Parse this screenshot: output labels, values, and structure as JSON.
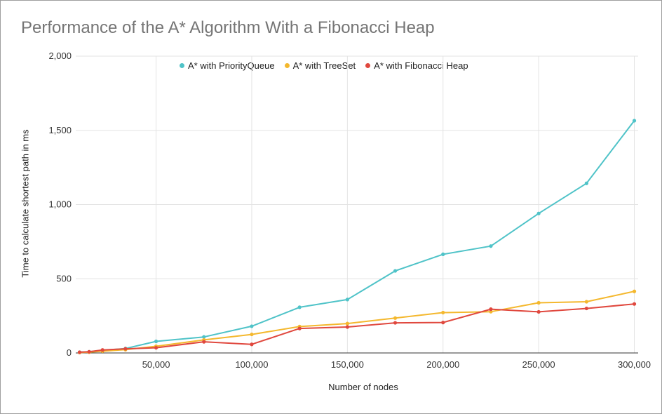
{
  "chart_data": {
    "type": "line",
    "title": "Performance of the A* Algorithm With a Fibonacci Heap",
    "xlabel": "Number of nodes",
    "ylabel": "Time to calculate shortest path in ms",
    "xlim": [
      8000,
      302000
    ],
    "ylim": [
      0,
      2000
    ],
    "xticks": [
      50000,
      100000,
      150000,
      200000,
      250000,
      300000
    ],
    "xtick_labels": [
      "50,000",
      "100,000",
      "150,000",
      "200,000",
      "250,000",
      "300,000"
    ],
    "yticks": [
      0,
      500,
      1000,
      1500,
      2000
    ],
    "ytick_labels": [
      "0",
      "500",
      "1,000",
      "1,500",
      "2,000"
    ],
    "grid": true,
    "legend_position": "top",
    "series": [
      {
        "name": "A* with PriorityQueue",
        "color": "#4fc3c8",
        "points": [
          [
            10000,
            5
          ],
          [
            15000,
            8
          ],
          [
            22000,
            18
          ],
          [
            34000,
            30
          ],
          [
            50000,
            78
          ],
          [
            75000,
            108
          ],
          [
            100000,
            180
          ],
          [
            125000,
            308
          ],
          [
            150000,
            360
          ],
          [
            175000,
            553
          ],
          [
            200000,
            665
          ],
          [
            225000,
            720
          ],
          [
            250000,
            940
          ],
          [
            275000,
            1143
          ],
          [
            300000,
            1565
          ]
        ]
      },
      {
        "name": "A* with TreeSet",
        "color": "#f4b82e",
        "points": [
          [
            10000,
            3
          ],
          [
            15000,
            5
          ],
          [
            22000,
            12
          ],
          [
            34000,
            22
          ],
          [
            50000,
            45
          ],
          [
            75000,
            88
          ],
          [
            100000,
            125
          ],
          [
            125000,
            178
          ],
          [
            150000,
            198
          ],
          [
            175000,
            235
          ],
          [
            200000,
            272
          ],
          [
            225000,
            278
          ],
          [
            250000,
            338
          ],
          [
            275000,
            345
          ],
          [
            300000,
            415
          ]
        ]
      },
      {
        "name": "A* with Fibonacci Heap",
        "color": "#e0483e",
        "points": [
          [
            10000,
            5
          ],
          [
            15000,
            8
          ],
          [
            22000,
            20
          ],
          [
            34000,
            28
          ],
          [
            50000,
            35
          ],
          [
            75000,
            75
          ],
          [
            100000,
            58
          ],
          [
            125000,
            165
          ],
          [
            150000,
            175
          ],
          [
            175000,
            203
          ],
          [
            200000,
            205
          ],
          [
            225000,
            295
          ],
          [
            250000,
            277
          ],
          [
            275000,
            300
          ],
          [
            300000,
            330
          ]
        ]
      }
    ]
  }
}
